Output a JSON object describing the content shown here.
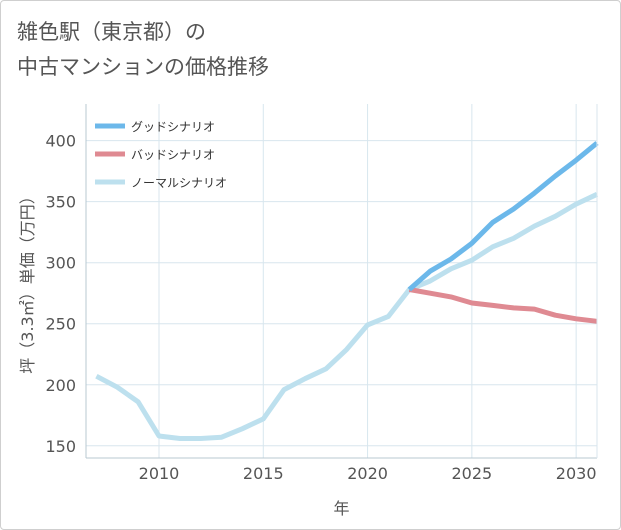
{
  "title_line1": "雑色駅（東京都）の",
  "title_line2": "中古マンションの価格推移",
  "chart_data": {
    "type": "line",
    "title": "雑色駅（東京都）の中古マンションの価格推移",
    "xlabel": "年",
    "ylabel": "坪（3.3㎡）単価（万円）",
    "xlim": [
      2006.5,
      2031
    ],
    "ylim": [
      140,
      430
    ],
    "xticks": [
      2010,
      2015,
      2020,
      2025,
      2030
    ],
    "yticks": [
      150,
      200,
      250,
      300,
      350,
      400
    ],
    "grid": true,
    "legend_position": "top-left",
    "series": [
      {
        "name": "グッドシナリオ",
        "color": "#6cb8ea",
        "x": [
          2022,
          2023,
          2024,
          2025,
          2026,
          2027,
          2028,
          2029,
          2030,
          2031
        ],
        "values": [
          278,
          293,
          303,
          316,
          333,
          344,
          357,
          371,
          384,
          398
        ]
      },
      {
        "name": "バッドシナリオ",
        "color": "#df8a92",
        "x": [
          2022,
          2023,
          2024,
          2025,
          2026,
          2027,
          2028,
          2029,
          2030,
          2031
        ],
        "values": [
          278,
          275,
          272,
          267,
          265,
          263,
          262,
          257,
          254,
          252
        ]
      },
      {
        "name": "ノーマルシナリオ",
        "color": "#bde0ee",
        "x": [
          2007,
          2008,
          2009,
          2010,
          2011,
          2012,
          2013,
          2014,
          2015,
          2016,
          2017,
          2018,
          2019,
          2020,
          2021,
          2022,
          2023,
          2024,
          2025,
          2026,
          2027,
          2028,
          2029,
          2030,
          2031
        ],
        "values": [
          207,
          198,
          186,
          158,
          156,
          156,
          157,
          164,
          172,
          196,
          205,
          213,
          229,
          249,
          256,
          278,
          285,
          295,
          302,
          313,
          320,
          330,
          338,
          348,
          356
        ]
      }
    ]
  }
}
